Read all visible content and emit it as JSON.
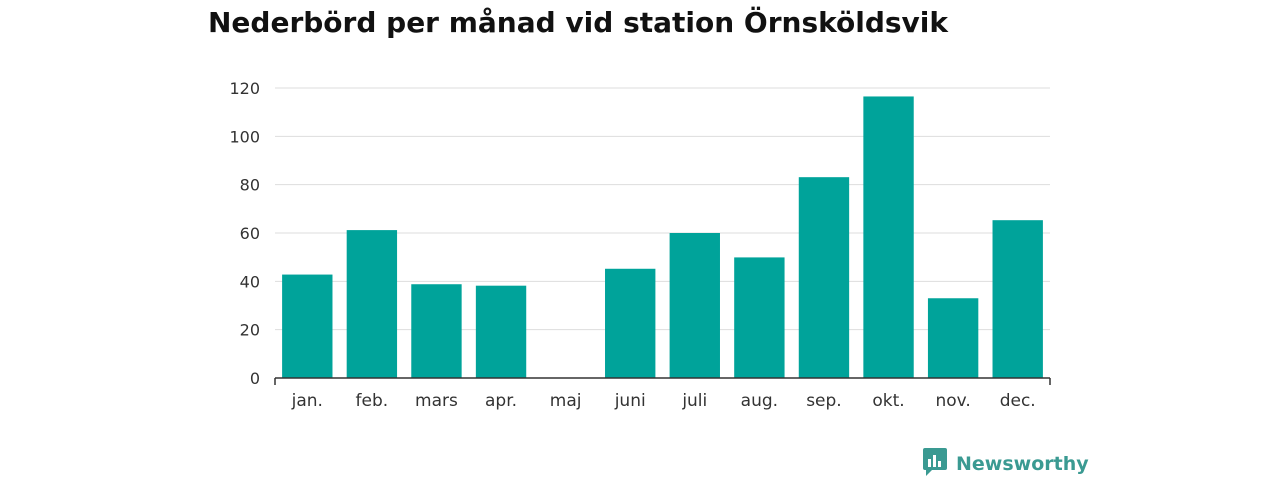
{
  "colors": {
    "bar": "#00a39a",
    "grid": "#dddddd",
    "axis": "#333333",
    "brand": "#3a9a92"
  },
  "brand": {
    "name": "Newsworthy",
    "icon": "bar-chart-speech-bubble-icon"
  },
  "chart_data": {
    "type": "bar",
    "title": "Nederbörd per månad vid station Örnsköldsvik",
    "xlabel": "",
    "ylabel": "",
    "categories": [
      "jan.",
      "feb.",
      "mars",
      "apr.",
      "maj",
      "juni",
      "juli",
      "aug.",
      "sep.",
      "okt.",
      "nov.",
      "dec."
    ],
    "values": [
      42.8,
      61.2,
      38.8,
      38.2,
      0,
      45.2,
      60.0,
      49.9,
      83.1,
      116.5,
      33.0,
      65.3
    ],
    "ylim": [
      0,
      120
    ],
    "yticks": [
      0,
      20,
      40,
      60,
      80,
      100,
      120
    ],
    "grid": true,
    "legend": "none"
  }
}
